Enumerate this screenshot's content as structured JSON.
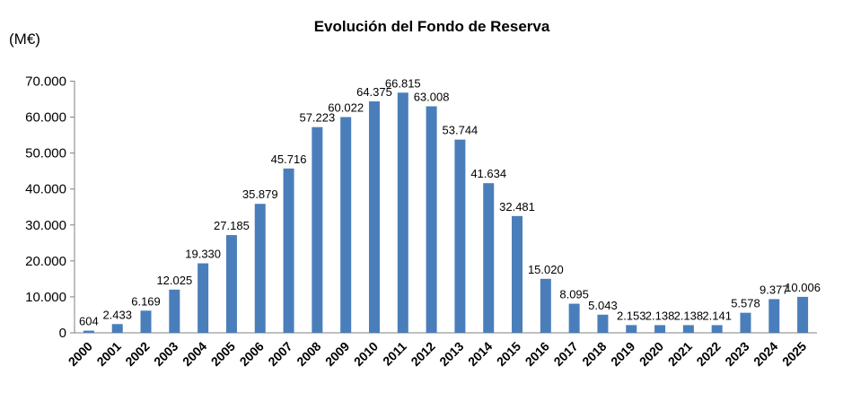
{
  "chart_data": {
    "type": "bar",
    "title": "Evolución del Fondo de Reserva",
    "unit_label": "(M€)",
    "ylim": [
      0,
      70000
    ],
    "yticks": [
      0,
      10000,
      20000,
      30000,
      40000,
      50000,
      60000,
      70000
    ],
    "ytick_labels": [
      "0",
      "10.000",
      "20.000",
      "30.000",
      "40.000",
      "50.000",
      "60.000",
      "70.000"
    ],
    "categories": [
      "2000",
      "2001",
      "2002",
      "2003",
      "2004",
      "2005",
      "2006",
      "2007",
      "2008",
      "2009",
      "2010",
      "2011",
      "2012",
      "2013",
      "2014",
      "2015",
      "2016",
      "2017",
      "2018",
      "2019",
      "2020",
      "2021",
      "2022",
      "2023",
      "2024",
      "2025"
    ],
    "values": [
      604,
      2433,
      6169,
      12025,
      19330,
      27185,
      35879,
      45716,
      57223,
      60022,
      64375,
      66815,
      63008,
      53744,
      41634,
      32481,
      15020,
      8095,
      5043,
      2153,
      2138,
      2138,
      2141,
      5578,
      9377,
      10006
    ],
    "data_labels": [
      "604",
      "2.433",
      "6.169",
      "12.025",
      "19.330",
      "27.185",
      "35.879",
      "45.716",
      "57.223",
      "60.022",
      "64.375",
      "66.815",
      "63.008",
      "53.744",
      "41.634",
      "32.481",
      "15.020",
      "8.095",
      "5.043",
      "2.153",
      "2.138",
      "2.138",
      "2.141",
      "5.578",
      "9.377",
      "10.006"
    ],
    "grid": false,
    "legend": "none",
    "bar_color": "#4a7ebb"
  }
}
